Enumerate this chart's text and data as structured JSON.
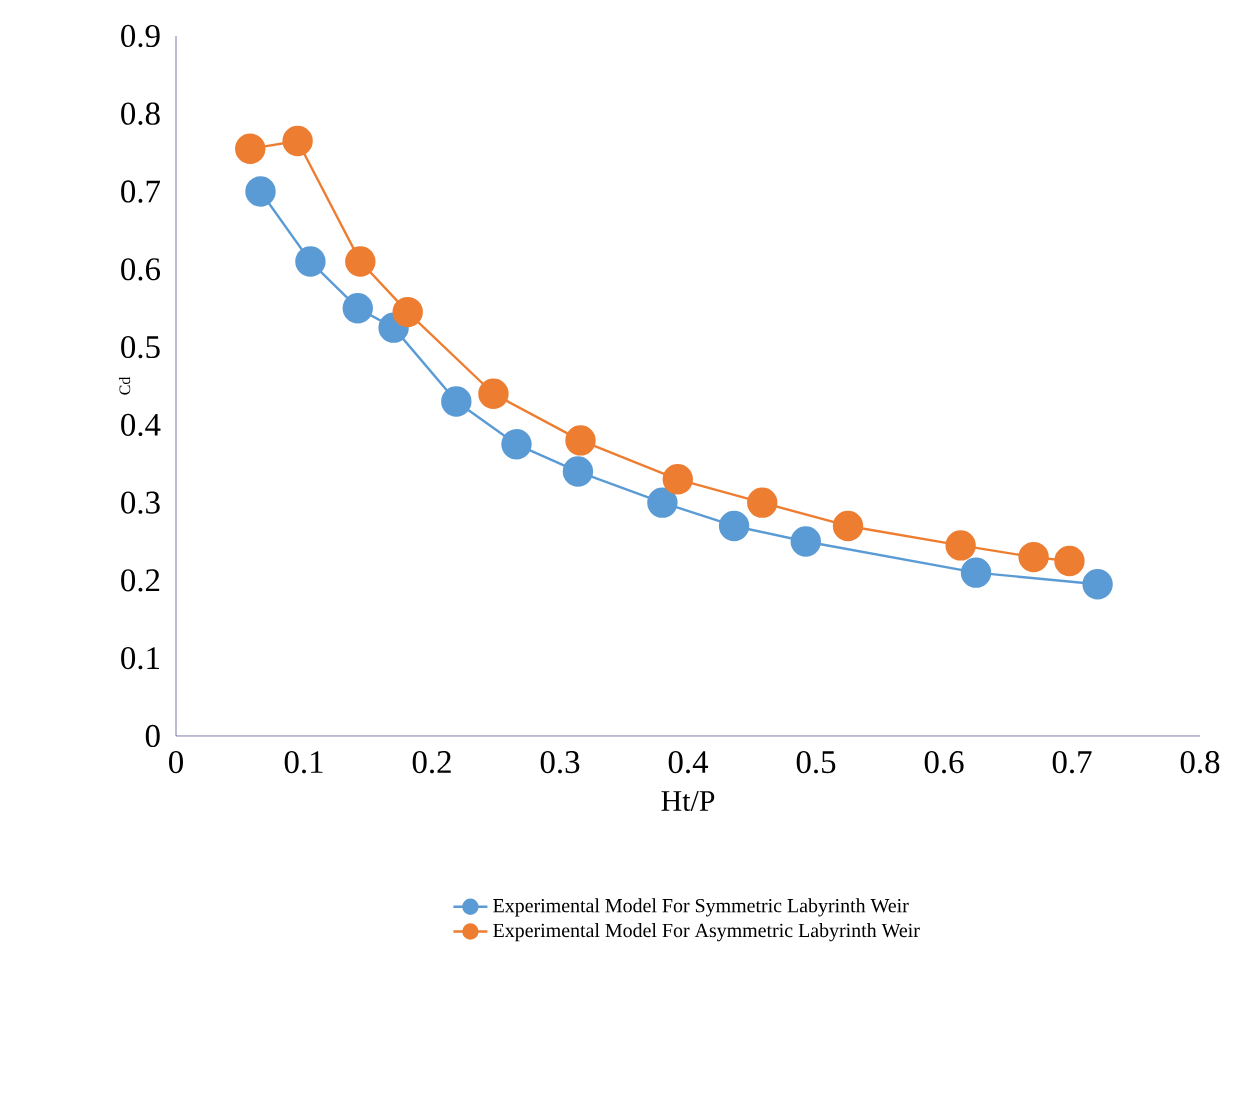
{
  "chart_data": {
    "type": "line",
    "xlabel": "Ht/P",
    "ylabel": "Cd",
    "xlim": [
      0,
      0.8
    ],
    "ylim": [
      0,
      0.9
    ],
    "xticks": [
      0,
      0.1,
      0.2,
      0.3,
      0.4,
      0.5,
      0.6,
      0.7,
      0.8
    ],
    "yticks": [
      0,
      0.1,
      0.2,
      0.3,
      0.4,
      0.5,
      0.6,
      0.7,
      0.8,
      0.9
    ],
    "grid": false,
    "legend": "bottom",
    "marker": "circle",
    "line_style": "solid",
    "series": [
      {
        "name": "Experimental Model For Symmetric Labyrinth Weir",
        "color": "#5b9bd5",
        "x": [
          0.066,
          0.105,
          0.142,
          0.17,
          0.219,
          0.266,
          0.314,
          0.38,
          0.436,
          0.492,
          0.625,
          0.72
        ],
        "values": [
          0.7,
          0.61,
          0.55,
          0.525,
          0.43,
          0.375,
          0.34,
          0.3,
          0.27,
          0.25,
          0.21,
          0.195
        ]
      },
      {
        "name": "Experimental Model For Asymmetric Labyrinth Weir",
        "color": "#ed7d31",
        "x": [
          0.058,
          0.095,
          0.144,
          0.181,
          0.248,
          0.316,
          0.392,
          0.458,
          0.525,
          0.613,
          0.67,
          0.698
        ],
        "values": [
          0.755,
          0.765,
          0.61,
          0.545,
          0.44,
          0.38,
          0.33,
          0.3,
          0.27,
          0.245,
          0.23,
          0.225
        ]
      }
    ]
  }
}
